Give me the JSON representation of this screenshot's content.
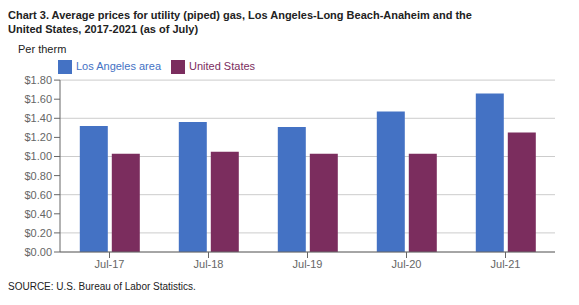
{
  "chart_data": {
    "type": "bar",
    "title": "Chart 3. Average prices for utility (piped) gas, Los Angeles-Long Beach-Anaheim and the",
    "subtitle": "United States, 2017-2021  (as of July)",
    "y_label": "Per therm",
    "annotations": [
      "SOURCE: U.S. Bureau of Labor Statistics."
    ],
    "categories": [
      "Jul-17",
      "Jul-18",
      "Jul-19",
      "Jul-20",
      "Jul-21"
    ],
    "series": [
      {
        "name": "Los Angeles area",
        "color": "#4472C4",
        "values": [
          1.32,
          1.36,
          1.31,
          1.47,
          1.66
        ]
      },
      {
        "name": "United States",
        "color": "#7B2D5E",
        "values": [
          1.03,
          1.05,
          1.03,
          1.03,
          1.25
        ]
      }
    ],
    "ylim": [
      0.0,
      1.8
    ],
    "yticks": [
      {
        "value": 0.0,
        "label": "$0.00"
      },
      {
        "value": 0.2,
        "label": "$0.20"
      },
      {
        "value": 0.4,
        "label": "$0.40"
      },
      {
        "value": 0.6,
        "label": "$0.60"
      },
      {
        "value": 0.8,
        "label": "$0.80"
      },
      {
        "value": 1.0,
        "label": "$1.00"
      },
      {
        "value": 1.2,
        "label": "$1.20"
      },
      {
        "value": 1.4,
        "label": "$1.40"
      },
      {
        "value": 1.6,
        "label": "$1.60"
      },
      {
        "value": 1.8,
        "label": "$1.80"
      }
    ],
    "grid": true,
    "legend": "top-left"
  }
}
